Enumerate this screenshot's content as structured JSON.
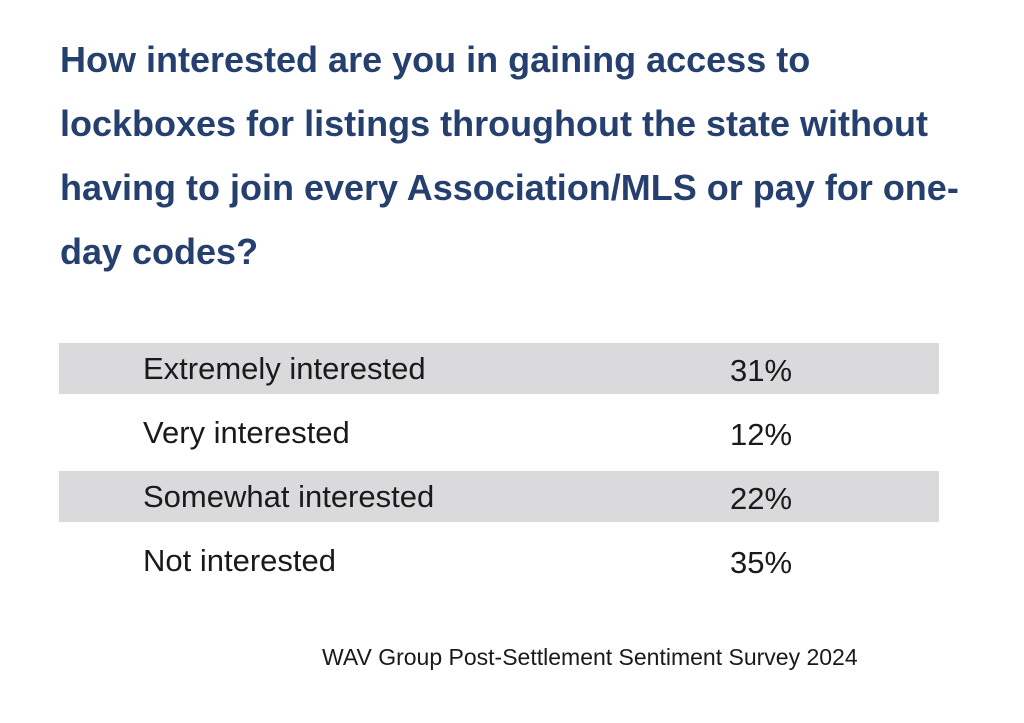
{
  "chart_data": {
    "type": "table",
    "title": "How interested are you in gaining access to lockboxes for listings throughout the state without having to join every Association/MLS or pay for one-day codes?",
    "rows": [
      {
        "label": "Extremely interested",
        "value": "31%",
        "percent": 31
      },
      {
        "label": "Very interested",
        "value": "12%",
        "percent": 12
      },
      {
        "label": "Somewhat interested",
        "value": "22%",
        "percent": 22
      },
      {
        "label": "Not interested",
        "value": "35%",
        "percent": 35
      }
    ],
    "source": "WAV Group Post-Settlement Sentiment Survey 2024"
  },
  "colors": {
    "title": "#253f6e",
    "row_shade": "#dadadc",
    "text": "#1a1a1a"
  }
}
